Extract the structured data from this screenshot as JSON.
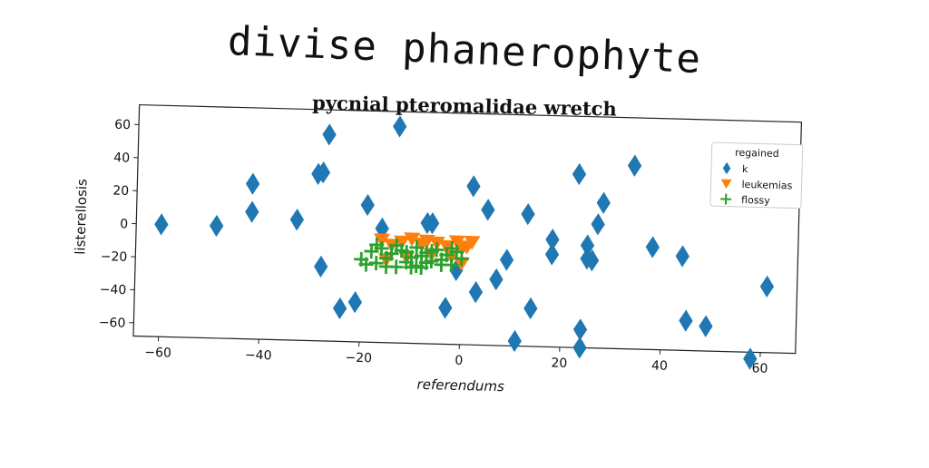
{
  "page_title": "divise phanerophyte",
  "chart_data": {
    "type": "scatter",
    "title": "pycnial pteromalidae wretch",
    "xlabel": "referendums",
    "ylabel": "listerellosis",
    "xlim": [
      -65,
      67
    ],
    "ylim": [
      -68,
      72
    ],
    "xticks": [
      -60,
      -40,
      -20,
      0,
      20,
      40,
      60
    ],
    "yticks": [
      -60,
      -40,
      -20,
      0,
      20,
      40,
      60
    ],
    "grid": false,
    "legend_title": "regained",
    "legend_position": "top-right",
    "series": [
      {
        "name": "k",
        "marker": "diamond",
        "color": "#1f77b4",
        "x": [
          -60,
          -49,
          -42,
          -42,
          -33,
          -28,
          -27,
          -29,
          -28,
          -24,
          -21,
          -19,
          -16,
          -13,
          -7,
          -6,
          -3,
          -1,
          2,
          3,
          5,
          7,
          9,
          11,
          13,
          14,
          18,
          18,
          23,
          24,
          24,
          25,
          25,
          26,
          27,
          28,
          34,
          38,
          44,
          45,
          49,
          58,
          61
        ],
        "y": [
          0,
          0,
          26,
          9,
          5,
          34,
          57,
          33,
          -23,
          -48,
          -44,
          15,
          1,
          63,
          5,
          5,
          -46,
          -23,
          28,
          -36,
          14,
          -28,
          -16,
          -65,
          12,
          -45,
          -3,
          -12,
          37,
          -57,
          -68,
          -6,
          -14,
          -15,
          7,
          20,
          43,
          -6,
          -11,
          -50,
          -53,
          -72,
          -28
        ]
      },
      {
        "name": "leukemias",
        "marker": "triangle_down",
        "color": "#ff7f0e",
        "x": [
          -16,
          -14,
          -12,
          -10,
          -8,
          -7,
          -5,
          -3,
          -1,
          0,
          1,
          2,
          -15,
          -11,
          -6,
          -2,
          0
        ],
        "y": [
          -6,
          -9,
          -7,
          -5,
          -8,
          -6,
          -7,
          -9,
          -6,
          -10,
          -9,
          -6,
          -18,
          -16,
          -14,
          -15,
          -19
        ]
      },
      {
        "name": "flossy",
        "marker": "plus",
        "color": "#2ca02c",
        "x": [
          -20,
          -18,
          -17,
          -16,
          -15,
          -14,
          -13,
          -12,
          -11,
          -10,
          -9,
          -9,
          -8,
          -7,
          -6,
          -5,
          -4,
          -3,
          -2,
          -1,
          0,
          -19,
          -17,
          -13,
          -11,
          -8,
          -6,
          -4,
          -2,
          -15,
          -10,
          -7
        ],
        "y": [
          -18,
          -13,
          -20,
          -11,
          -17,
          -14,
          -22,
          -12,
          -19,
          -16,
          -10,
          -21,
          -15,
          -13,
          -18,
          -11,
          -17,
          -14,
          -20,
          -12,
          -16,
          -21,
          -9,
          -9,
          -13,
          -22,
          -12,
          -20,
          -10,
          -22,
          -22,
          -19
        ]
      }
    ]
  }
}
